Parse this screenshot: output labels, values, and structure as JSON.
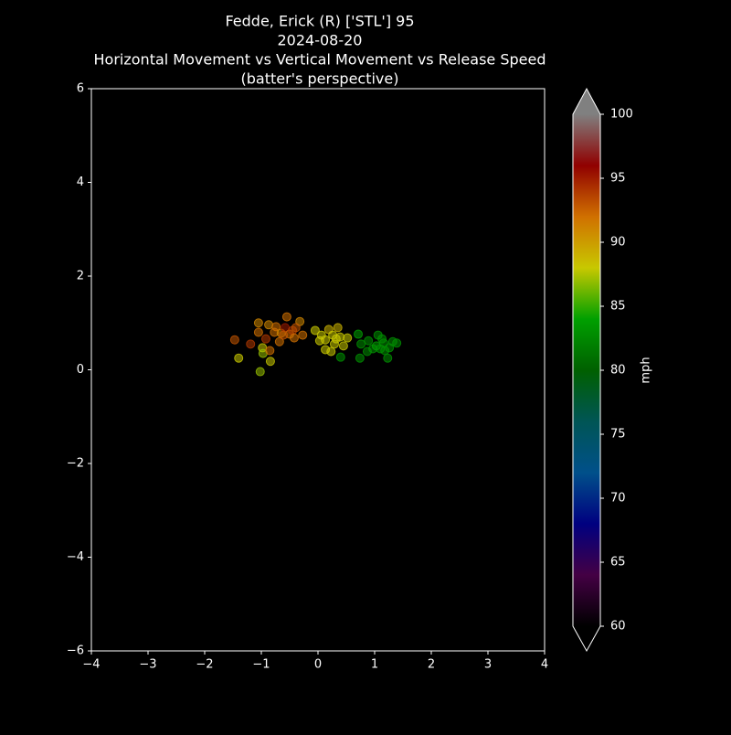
{
  "chart_data": {
    "type": "scatter",
    "title": [
      "Fedde, Erick (R) ['STL'] 95",
      "2024-08-20",
      "Horizontal Movement vs Vertical Movement vs Release Speed",
      "(batter's perspective)"
    ],
    "x": [
      -1.47,
      -1.4,
      -1.19,
      -1.05,
      -1.05,
      -0.98,
      -0.97,
      -1.02,
      -0.92,
      -0.85,
      -0.84,
      -0.87,
      -0.77,
      -0.74,
      -0.68,
      -0.65,
      -0.58,
      -0.55,
      -0.5,
      -0.45,
      -0.42,
      -0.32,
      -0.27,
      -0.39,
      -0.61,
      -0.05,
      0.06,
      0.13,
      0.19,
      0.26,
      0.13,
      0.23,
      0.29,
      0.35,
      0.39,
      0.45,
      0.52,
      0.32,
      0.03,
      0.4,
      0.71,
      0.76,
      0.74,
      0.89,
      0.87,
      0.97,
      1.03,
      1.06,
      1.13,
      1.16,
      1.18,
      1.23,
      1.26,
      1.32,
      1.39,
      1.1
    ],
    "y": [
      0.64,
      0.25,
      0.55,
      1.0,
      0.8,
      0.47,
      0.35,
      -0.04,
      0.66,
      0.41,
      0.18,
      0.96,
      0.8,
      0.92,
      0.6,
      0.78,
      0.9,
      1.13,
      0.76,
      0.84,
      0.68,
      1.03,
      0.74,
      0.9,
      0.74,
      0.84,
      0.74,
      0.64,
      0.86,
      0.74,
      0.43,
      0.39,
      0.55,
      0.9,
      0.7,
      0.51,
      0.68,
      0.66,
      0.62,
      0.27,
      0.76,
      0.55,
      0.25,
      0.62,
      0.39,
      0.45,
      0.51,
      0.74,
      0.66,
      0.57,
      0.41,
      0.25,
      0.47,
      0.6,
      0.57,
      0.45
    ],
    "speed": [
      93,
      88,
      94,
      91,
      92,
      88,
      87,
      87,
      94,
      92,
      88,
      91,
      92,
      92,
      92,
      91,
      95,
      92,
      92,
      94,
      92,
      91,
      92,
      93,
      93,
      88,
      88,
      88,
      89,
      88,
      88,
      88,
      88,
      89,
      88,
      88,
      88,
      88,
      88,
      83,
      84,
      83,
      83,
      83,
      83,
      83,
      84,
      83,
      83,
      83,
      83,
      83,
      83,
      83,
      83,
      83
    ],
    "xlim": [
      -4,
      4
    ],
    "xticks": [
      {
        "value": -4,
        "label": "−4"
      },
      {
        "value": -3,
        "label": "−3"
      },
      {
        "value": -2,
        "label": "−2"
      },
      {
        "value": -1,
        "label": "−1"
      },
      0,
      1,
      2,
      3,
      4
    ],
    "ylim": [
      -6,
      6
    ],
    "yticks": [
      {
        "value": -6,
        "label": "−6"
      },
      {
        "value": -4,
        "label": "−4"
      },
      {
        "value": -2,
        "label": "−2"
      },
      0,
      2,
      4,
      6
    ],
    "clim": [
      60,
      100
    ],
    "cticks": [
      60,
      65,
      70,
      75,
      80,
      85,
      90,
      95,
      100
    ],
    "colorbar_label": "mph",
    "colormap": [
      "#000000",
      "#440044",
      "#000080",
      "#00508a",
      "#005555",
      "#006000",
      "#00a000",
      "#c8c800",
      "#d07000",
      "#900000",
      "#808080"
    ]
  }
}
